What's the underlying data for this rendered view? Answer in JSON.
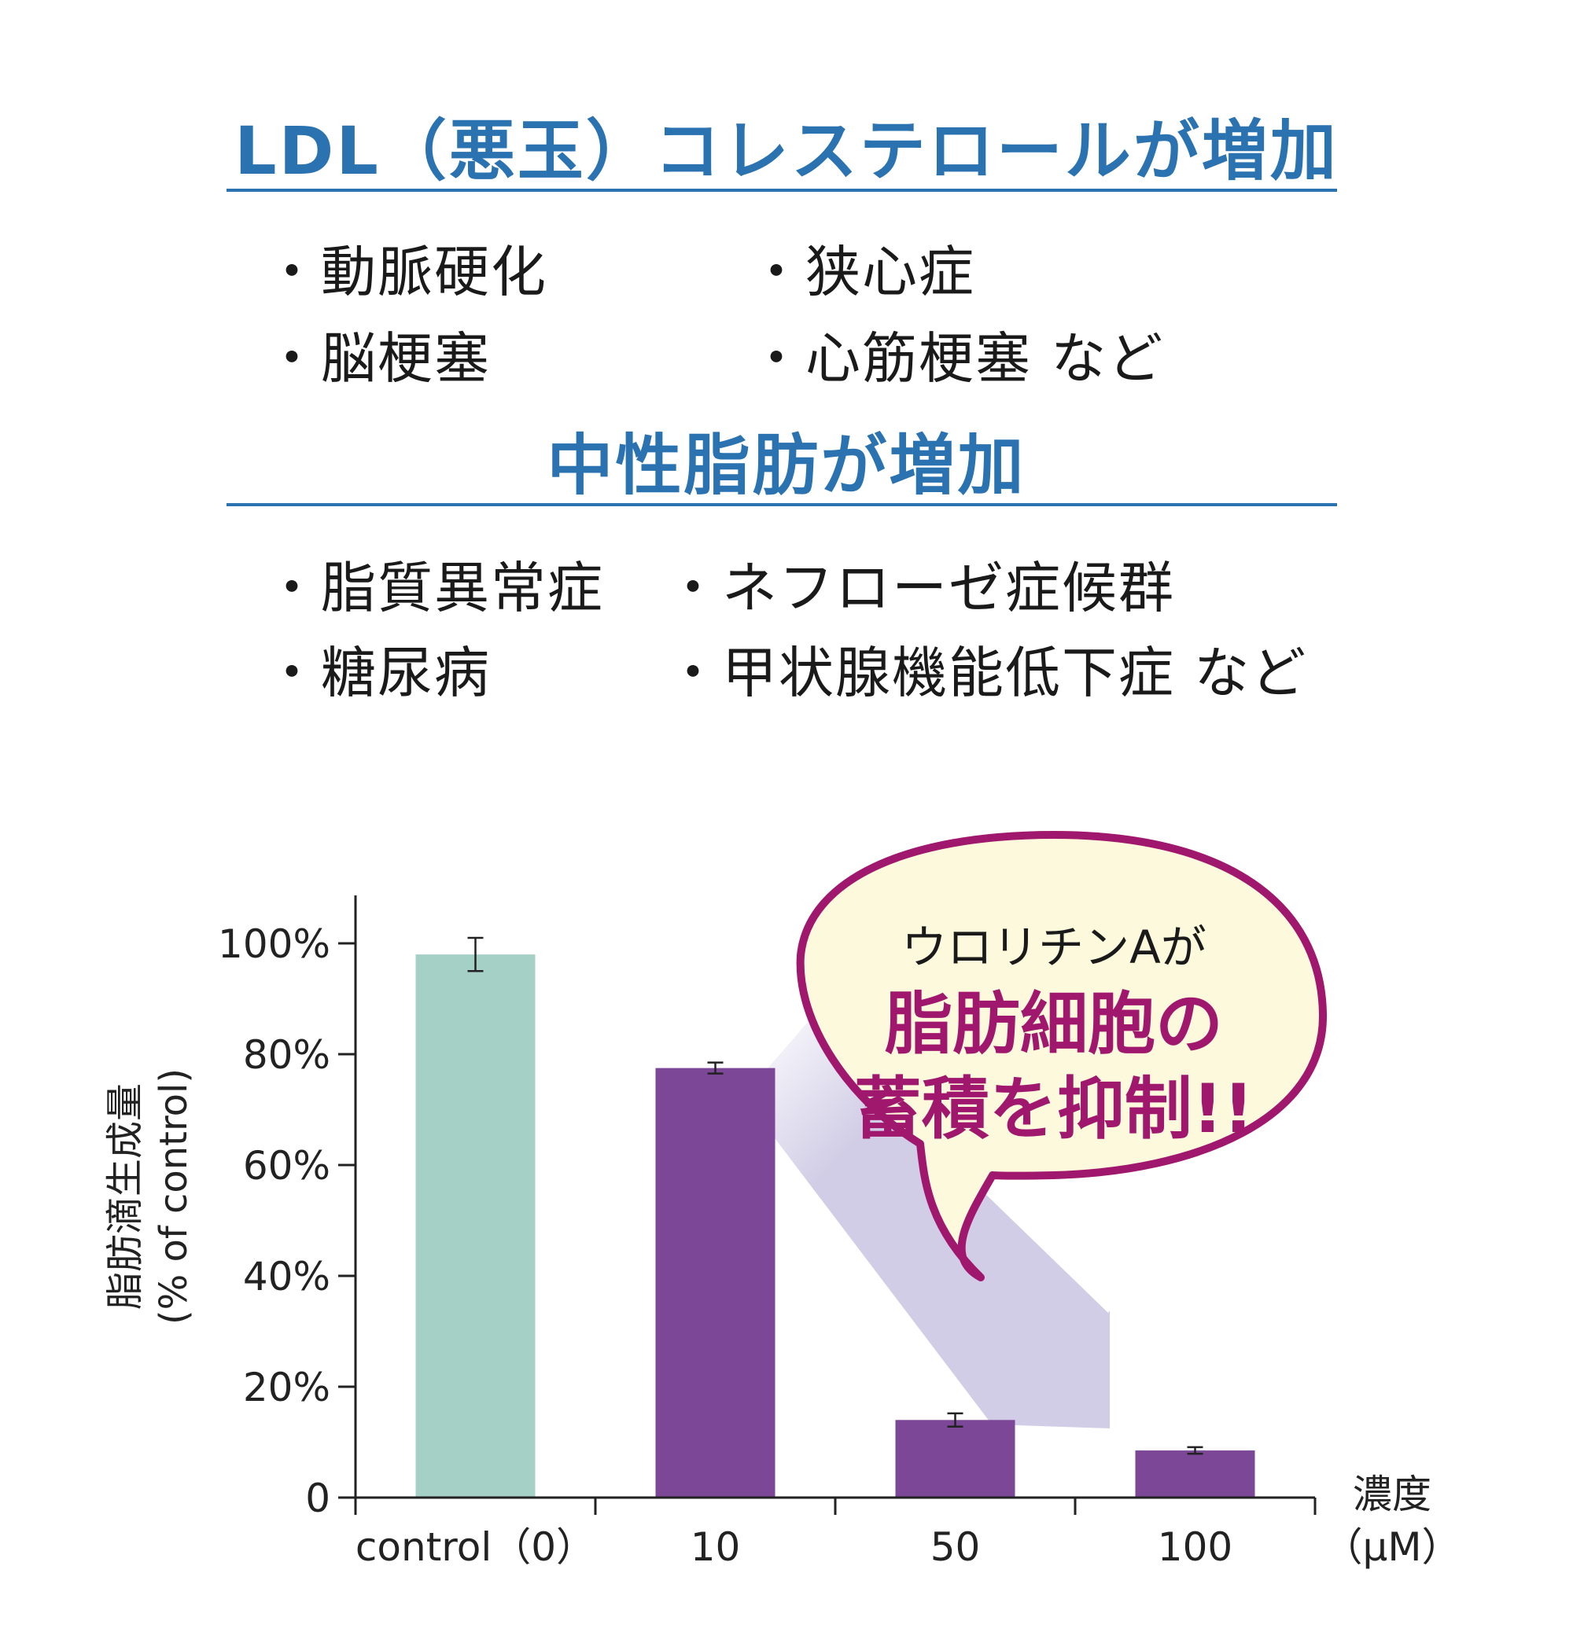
{
  "sections": [
    {
      "heading": "LDL（悪玉）コレステロールが増加",
      "items": [
        "・動脈硬化",
        "・狭心症",
        "・脳梗塞",
        "・心筋梗塞 など"
      ]
    },
    {
      "heading": "中性脂肪が増加",
      "items": [
        "・脂質異常症",
        "・ネフローゼ症候群",
        "・糖尿病",
        "・甲状腺機能低下症 など"
      ]
    }
  ],
  "callout": {
    "line1": "ウロリチンAが",
    "line2": "脂肪細胞の",
    "line3": "蓄積を抑制!!"
  },
  "colors": {
    "heading": "#2a72b0",
    "control_bar": "#a5d0c6",
    "treated_bar": "#7b4796",
    "callout_fill": "#fdf9dc",
    "callout_stroke": "#a0186d",
    "callout_text": "#a0186d",
    "arrow": "#d1cde6"
  },
  "chart_data": {
    "type": "bar",
    "categories": [
      "control（0）",
      "10",
      "50",
      "100"
    ],
    "values": [
      98,
      77.5,
      14,
      8.5
    ],
    "errors": [
      3,
      1,
      1.2,
      0.6
    ],
    "ylabel": "脂肪滴生成量",
    "ylabel_sub": "(% of control)",
    "xlabel": "濃度",
    "xlabel_sub": "（μM）",
    "yticks": [
      "0",
      "20%",
      "40%",
      "60%",
      "80%",
      "100%"
    ],
    "ytick_values": [
      0,
      20,
      40,
      60,
      80,
      100
    ],
    "ylim": [
      0,
      109
    ]
  }
}
